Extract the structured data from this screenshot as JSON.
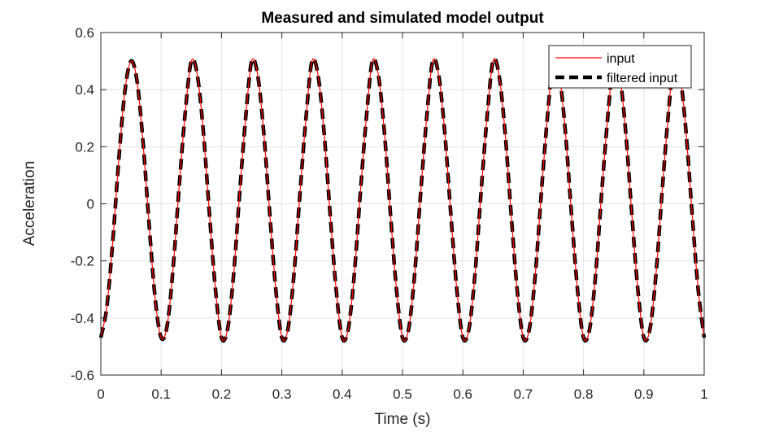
{
  "chart_data": {
    "type": "line",
    "title": "Measured and simulated model output",
    "xlabel": "Time (s)",
    "ylabel": "Acceleration",
    "xlim": [
      0,
      1
    ],
    "ylim": [
      -0.6,
      0.6
    ],
    "x_ticks": [
      "0",
      "0.1",
      "0.2",
      "0.3",
      "0.4",
      "0.5",
      "0.6",
      "0.7",
      "0.8",
      "0.9",
      "1"
    ],
    "y_ticks": [
      "-0.6",
      "-0.4",
      "-0.2",
      "0",
      "0.2",
      "0.4",
      "0.6"
    ],
    "grid": true,
    "legend_location": "top-right",
    "x": [
      0,
      0.01,
      0.02,
      0.03,
      0.04,
      0.05,
      0.06,
      0.07,
      0.08,
      0.09,
      0.1,
      0.11,
      0.12,
      0.13,
      0.14,
      0.15,
      0.16,
      0.17,
      0.18,
      0.19,
      0.2,
      0.21,
      0.22,
      0.23,
      0.24,
      0.25,
      0.26,
      0.27,
      0.28,
      0.29,
      0.3,
      0.31,
      0.32,
      0.33,
      0.34,
      0.35,
      0.36,
      0.37,
      0.38,
      0.39,
      0.4,
      0.41,
      0.42,
      0.43,
      0.44,
      0.45,
      0.46,
      0.47,
      0.48,
      0.49,
      0.5,
      0.51,
      0.52,
      0.53,
      0.54,
      0.55,
      0.56,
      0.57,
      0.58,
      0.59,
      0.6,
      0.61,
      0.62,
      0.63,
      0.64,
      0.65,
      0.66,
      0.67,
      0.68,
      0.69,
      0.7,
      0.71,
      0.72,
      0.73,
      0.74,
      0.75,
      0.76,
      0.77,
      0.78,
      0.79,
      0.8,
      0.81,
      0.82,
      0.83,
      0.84,
      0.85,
      0.86,
      0.87,
      0.88,
      0.89,
      0.9,
      0.91,
      0.92,
      0.93,
      0.94,
      0.95,
      0.96,
      0.97,
      0.98,
      0.99,
      1
    ],
    "series": [
      {
        "name": "input",
        "color": "#ff0000",
        "line_style": "solid",
        "line_width": "thin",
        "values": [
          -0.469,
          -0.36,
          -0.126,
          0.161,
          0.396,
          0.5,
          0.43,
          0.215,
          -0.072,
          -0.331,
          -0.469,
          -0.426,
          -0.22,
          0.065,
          0.322,
          0.5,
          0.45,
          0.25,
          -0.035,
          -0.3,
          -0.469,
          -0.44,
          -0.25,
          0.035,
          0.3,
          0.5,
          0.45,
          0.25,
          -0.035,
          -0.3,
          -0.469,
          -0.44,
          -0.25,
          0.035,
          0.3,
          0.5,
          0.45,
          0.25,
          -0.035,
          -0.3,
          -0.469,
          -0.44,
          -0.25,
          0.035,
          0.3,
          0.5,
          0.45,
          0.25,
          -0.035,
          -0.3,
          -0.469,
          -0.44,
          -0.25,
          0.035,
          0.3,
          0.5,
          0.45,
          0.25,
          -0.035,
          -0.3,
          -0.469,
          -0.44,
          -0.25,
          0.035,
          0.3,
          0.5,
          0.45,
          0.25,
          -0.035,
          -0.3,
          -0.469,
          -0.44,
          -0.25,
          0.035,
          0.3,
          0.5,
          0.45,
          0.25,
          -0.035,
          -0.3,
          -0.469,
          -0.44,
          -0.25,
          0.035,
          0.3,
          0.5,
          0.45,
          0.25,
          -0.035,
          -0.3,
          -0.469,
          -0.44,
          -0.25,
          0.035,
          0.3,
          0.5,
          0.45,
          0.25,
          -0.035,
          -0.3,
          -0.469
        ]
      },
      {
        "name": "filtered input",
        "color": "#000000",
        "line_style": "dashed",
        "line_width": "thick",
        "values": [
          -0.469,
          -0.36,
          -0.126,
          0.161,
          0.396,
          0.5,
          0.43,
          0.215,
          -0.072,
          -0.331,
          -0.469,
          -0.426,
          -0.22,
          0.065,
          0.322,
          0.5,
          0.45,
          0.25,
          -0.035,
          -0.3,
          -0.469,
          -0.44,
          -0.25,
          0.035,
          0.3,
          0.5,
          0.45,
          0.25,
          -0.035,
          -0.3,
          -0.469,
          -0.44,
          -0.25,
          0.035,
          0.3,
          0.5,
          0.45,
          0.25,
          -0.035,
          -0.3,
          -0.469,
          -0.44,
          -0.25,
          0.035,
          0.3,
          0.5,
          0.45,
          0.25,
          -0.035,
          -0.3,
          -0.469,
          -0.44,
          -0.25,
          0.035,
          0.3,
          0.5,
          0.45,
          0.25,
          -0.035,
          -0.3,
          -0.469,
          -0.44,
          -0.25,
          0.035,
          0.3,
          0.5,
          0.45,
          0.25,
          -0.035,
          -0.3,
          -0.469,
          -0.44,
          -0.25,
          0.035,
          0.3,
          0.5,
          0.45,
          0.25,
          -0.035,
          -0.3,
          -0.469,
          -0.44,
          -0.25,
          0.035,
          0.3,
          0.5,
          0.45,
          0.25,
          -0.035,
          -0.3,
          -0.469,
          -0.44,
          -0.25,
          0.035,
          0.3,
          0.5,
          0.45,
          0.25,
          -0.035,
          -0.3,
          -0.469
        ]
      }
    ]
  }
}
